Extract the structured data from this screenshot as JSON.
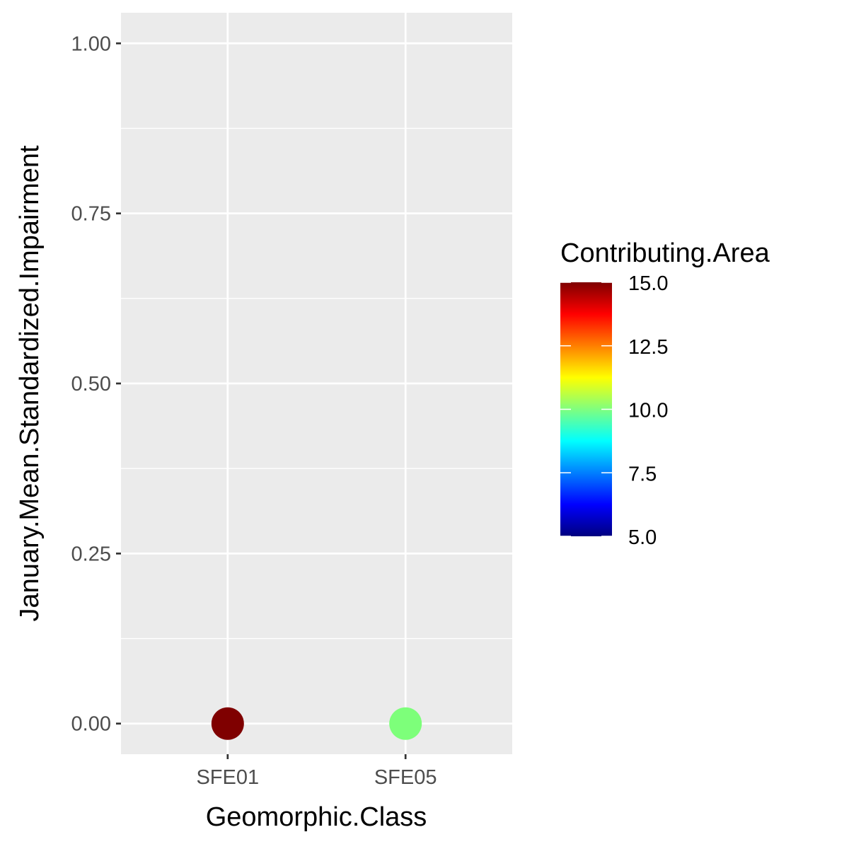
{
  "chart_data": {
    "type": "scatter",
    "xlabel": "Geomorphic.Class",
    "ylabel": "January.Mean.Standardized.Impairment",
    "categories": [
      "SFE01",
      "SFE05"
    ],
    "points": [
      {
        "x": "SFE01",
        "y": 0.0,
        "color_value": 15.0,
        "color": "#7f0000"
      },
      {
        "x": "SFE05",
        "y": 0.0,
        "color_value": 10.3,
        "color": "#7dff7a"
      }
    ],
    "ylim": [
      -0.045,
      1.045
    ],
    "y_ticks": [
      0.0,
      0.25,
      0.5,
      0.75,
      1.0
    ],
    "y_tick_labels": [
      "0.00",
      "0.25",
      "0.50",
      "0.75",
      "1.00"
    ],
    "grid": true,
    "legend": {
      "title": "Contributing.Area",
      "placement": "right",
      "range": [
        5.0,
        15.0
      ],
      "ticks": [
        5.0,
        7.5,
        10.0,
        12.5,
        15.0
      ],
      "tick_labels": [
        "5.0",
        "7.5",
        "10.0",
        "12.5",
        "15.0"
      ],
      "colors": [
        "#00007f",
        "#0000ff",
        "#007fff",
        "#00ffff",
        "#7fff7f",
        "#ffff00",
        "#ff7f00",
        "#ff0000",
        "#7f0000"
      ]
    },
    "panel_background": "#ebebeb",
    "grid_color": "#ffffff"
  }
}
